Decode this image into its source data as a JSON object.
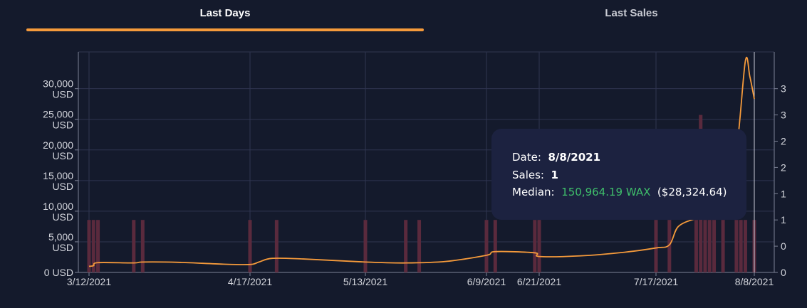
{
  "tabs": [
    {
      "label": "Last Days",
      "active": true
    },
    {
      "label": "Last Sales",
      "active": false
    }
  ],
  "colors": {
    "background": "#141a2c",
    "accent": "#f59a3b",
    "bar": "#5a2a3d",
    "median": "#3fbf6b",
    "tooltip_bg": "#1c2240"
  },
  "tooltip": {
    "date_label": "Date:",
    "date_value": "8/8/2021",
    "sales_label": "Sales:",
    "sales_value": "1",
    "median_label": "Median:",
    "median_value": "150,964.19 WAX",
    "median_usd": "($28,324.64)"
  },
  "chart_data": {
    "type": "bar",
    "x_ticks": [
      "3/12/2021",
      "4/17/2021",
      "5/13/2021",
      "6/9/2021",
      "6/21/2021",
      "7/17/2021",
      "8/8/2021"
    ],
    "y_left_ticks": [
      {
        "value": 0,
        "label": "0 USD",
        "lines": [
          "0 USD"
        ]
      },
      {
        "value": 5000,
        "label": "5,000 USD",
        "lines": [
          "5,000",
          "USD"
        ]
      },
      {
        "value": 10000,
        "label": "10,000 USD",
        "lines": [
          "10,000",
          "USD"
        ]
      },
      {
        "value": 15000,
        "label": "15,000 USD",
        "lines": [
          "15,000",
          "USD"
        ]
      },
      {
        "value": 20000,
        "label": "20,000 USD",
        "lines": [
          "20,000",
          "USD"
        ]
      },
      {
        "value": 25000,
        "label": "25,000 USD",
        "lines": [
          "25,000",
          "USD"
        ]
      },
      {
        "value": 30000,
        "label": "30,000 USD",
        "lines": [
          "30,000",
          "USD"
        ]
      }
    ],
    "y_left_range": [
      0,
      36000
    ],
    "y_right_ticks": [
      {
        "value": 0,
        "label": "0"
      },
      {
        "value": 0.5,
        "label": "0"
      },
      {
        "value": 1,
        "label": "1"
      },
      {
        "value": 1.5,
        "label": "1"
      },
      {
        "value": 2,
        "label": "2"
      },
      {
        "value": 2.5,
        "label": "2"
      },
      {
        "value": 3,
        "label": "3"
      },
      {
        "value": 3.5,
        "label": "3"
      }
    ],
    "y_right_range": [
      0,
      4.2
    ],
    "x_range_days": [
      0,
      149
    ],
    "grid": true,
    "series": [
      {
        "kind": "bar",
        "axis": "right",
        "points": [
          {
            "x": 0,
            "y": 1
          },
          {
            "x": 1,
            "y": 1
          },
          {
            "x": 2,
            "y": 1
          },
          {
            "x": 10,
            "y": 1
          },
          {
            "x": 12,
            "y": 1
          },
          {
            "x": 36,
            "y": 1
          },
          {
            "x": 42,
            "y": 1
          },
          {
            "x": 62,
            "y": 1
          },
          {
            "x": 71,
            "y": 1
          },
          {
            "x": 74,
            "y": 1
          },
          {
            "x": 89,
            "y": 1
          },
          {
            "x": 91,
            "y": 1
          },
          {
            "x": 100,
            "y": 1
          },
          {
            "x": 101,
            "y": 1
          },
          {
            "x": 127,
            "y": 1
          },
          {
            "x": 130,
            "y": 1
          },
          {
            "x": 136,
            "y": 1
          },
          {
            "x": 137,
            "y": 3
          },
          {
            "x": 138,
            "y": 1
          },
          {
            "x": 139,
            "y": 1
          },
          {
            "x": 140,
            "y": 1
          },
          {
            "x": 142,
            "y": 1
          },
          {
            "x": 145,
            "y": 1
          },
          {
            "x": 146,
            "y": 1
          },
          {
            "x": 147,
            "y": 1
          },
          {
            "x": 149,
            "y": 1
          }
        ]
      },
      {
        "kind": "line",
        "axis": "left",
        "color": "#f59a3b",
        "points": [
          {
            "x": 0,
            "y": 1000
          },
          {
            "x": 1,
            "y": 1100
          },
          {
            "x": 2,
            "y": 1600
          },
          {
            "x": 10,
            "y": 1550
          },
          {
            "x": 12,
            "y": 1700
          },
          {
            "x": 20,
            "y": 1650
          },
          {
            "x": 30,
            "y": 1350
          },
          {
            "x": 36,
            "y": 1300
          },
          {
            "x": 38,
            "y": 1700
          },
          {
            "x": 41,
            "y": 2300
          },
          {
            "x": 48,
            "y": 2200
          },
          {
            "x": 62,
            "y": 1700
          },
          {
            "x": 71,
            "y": 1550
          },
          {
            "x": 80,
            "y": 1800
          },
          {
            "x": 89,
            "y": 2800
          },
          {
            "x": 91,
            "y": 3400
          },
          {
            "x": 100,
            "y": 3200
          },
          {
            "x": 101,
            "y": 2600
          },
          {
            "x": 110,
            "y": 2700
          },
          {
            "x": 120,
            "y": 3300
          },
          {
            "x": 127,
            "y": 4000
          },
          {
            "x": 130,
            "y": 4500
          },
          {
            "x": 132,
            "y": 7500
          },
          {
            "x": 136,
            "y": 8800
          },
          {
            "x": 139,
            "y": 9200
          },
          {
            "x": 142,
            "y": 12000
          },
          {
            "x": 145,
            "y": 20000
          },
          {
            "x": 147,
            "y": 34500
          },
          {
            "x": 148,
            "y": 32000
          },
          {
            "x": 149,
            "y": 28324.64
          }
        ]
      }
    ],
    "hover_x": 149
  }
}
